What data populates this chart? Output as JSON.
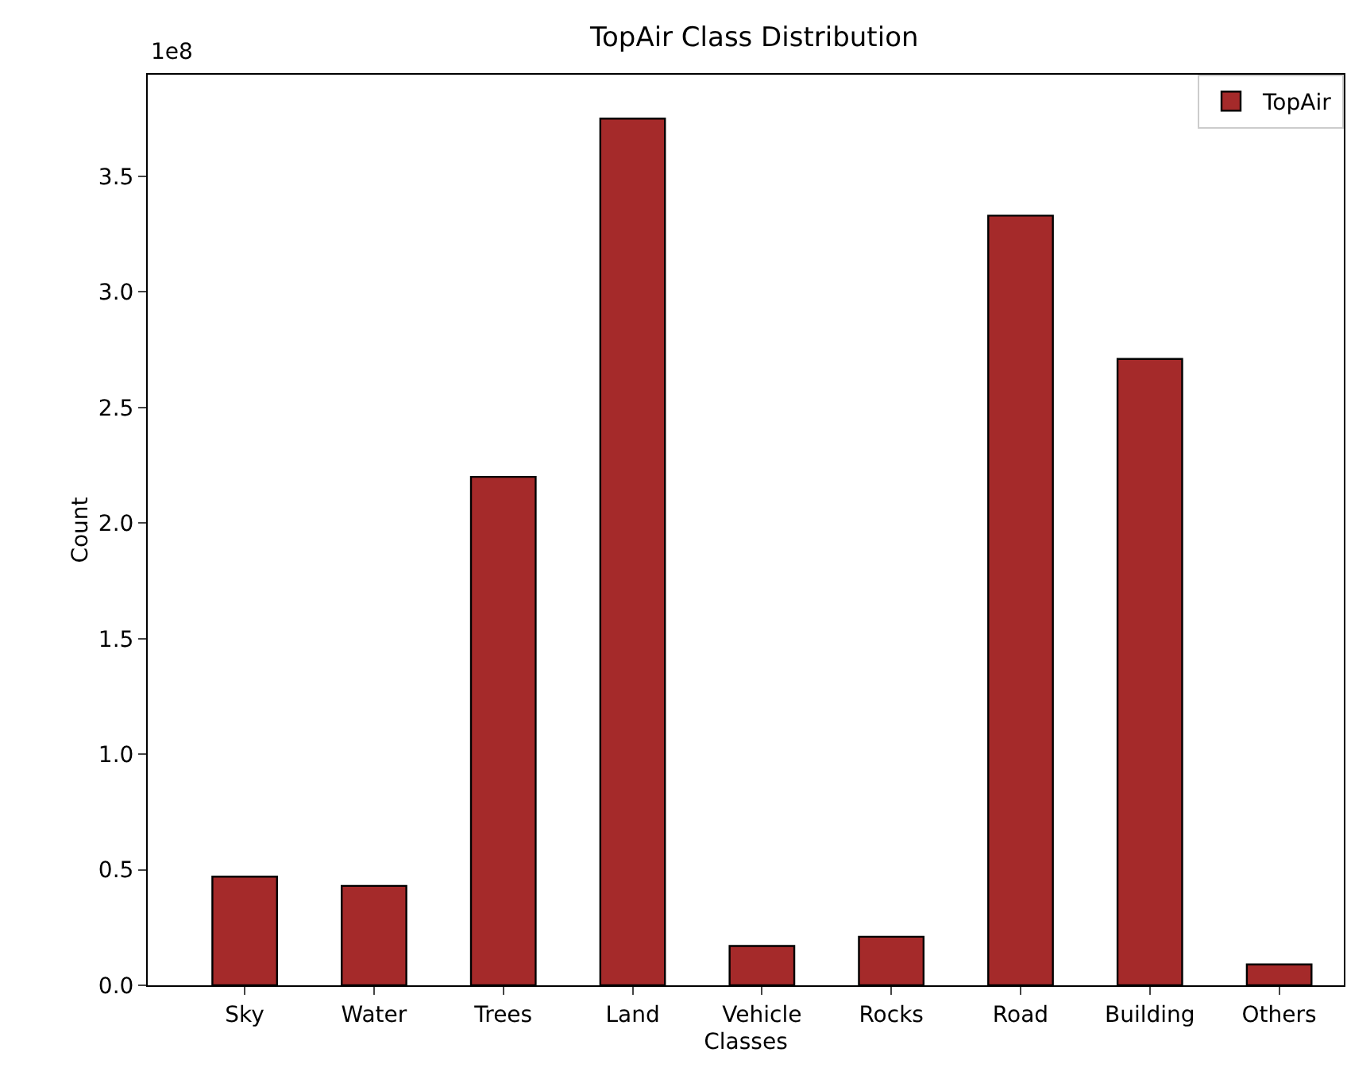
{
  "chart_data": {
    "type": "bar",
    "title": "TopAir Class Distribution",
    "xlabel": "Classes",
    "ylabel": "Count",
    "categories": [
      "Sky",
      "Water",
      "Trees",
      "Land",
      "Vehicle",
      "Rocks",
      "Road",
      "Building",
      "Others"
    ],
    "series": [
      {
        "name": "TopAir",
        "color": "#a52a2a",
        "values": [
          0.47,
          0.43,
          2.2,
          3.75,
          0.17,
          0.21,
          3.33,
          2.71,
          0.09
        ]
      }
    ],
    "ylim": [
      0,
      3.94
    ],
    "yticks": [
      {
        "value": 0,
        "label": "0.0"
      },
      {
        "value": 0.5,
        "label": "0.5"
      },
      {
        "value": 1,
        "label": "1.0"
      },
      {
        "value": 1.5,
        "label": "1.5"
      },
      {
        "value": 2,
        "label": "2.0"
      },
      {
        "value": 2.5,
        "label": "2.5"
      },
      {
        "value": 3,
        "label": "3.0"
      },
      {
        "value": 3.5,
        "label": "3.5"
      }
    ],
    "annotations": [
      "1e8"
    ],
    "grid": false,
    "legend": "top right"
  }
}
